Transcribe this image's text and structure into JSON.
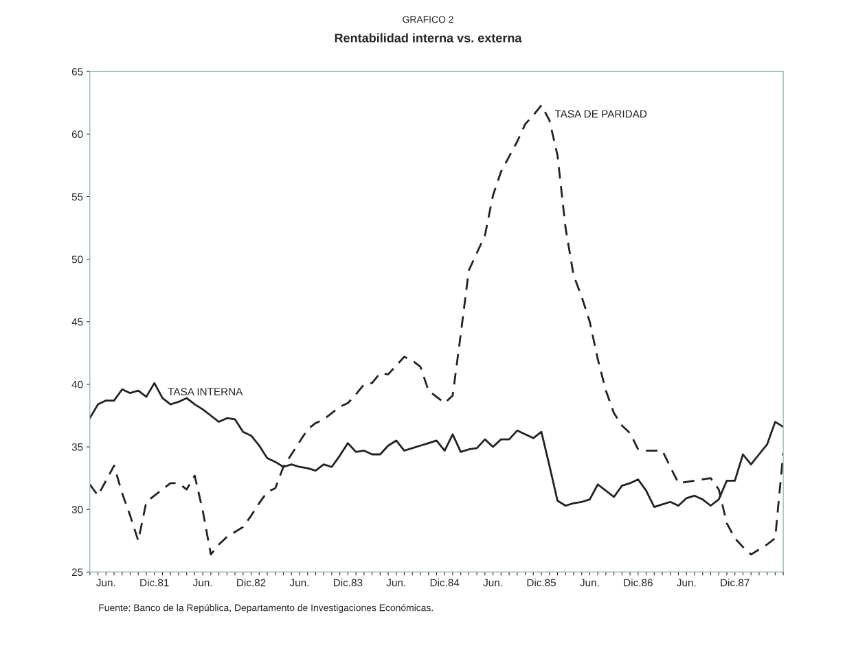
{
  "chart_data": {
    "type": "line",
    "title": "GRAFICO 2",
    "subtitle": "Rentabilidad interna vs. externa",
    "annotations": [
      "Fuente: Banco de la República, Departamento de Investigaciones Económicas."
    ],
    "ylim": [
      25,
      65
    ],
    "yticks": [
      25,
      30,
      35,
      40,
      45,
      50,
      55,
      60,
      65
    ],
    "categories": [
      null,
      null,
      "Jun.",
      null,
      null,
      null,
      null,
      null,
      "Dic.81",
      null,
      null,
      null,
      null,
      null,
      "Jun.",
      null,
      null,
      null,
      null,
      null,
      "Dic.82",
      null,
      null,
      null,
      null,
      null,
      "Jun.",
      null,
      null,
      null,
      null,
      null,
      "Dic.83",
      null,
      null,
      null,
      null,
      null,
      "Jun.",
      null,
      null,
      null,
      null,
      null,
      "Dic.84",
      null,
      null,
      null,
      null,
      null,
      "Jun.",
      null,
      null,
      null,
      null,
      null,
      "Dic.85",
      null,
      null,
      null,
      null,
      null,
      "Jun.",
      null,
      null,
      null,
      null,
      null,
      "Dic.86",
      null,
      null,
      null,
      null,
      null,
      "Jun.",
      null,
      null,
      null,
      null,
      null,
      "Dic.87",
      null,
      null,
      null,
      null,
      null,
      null
    ],
    "grid": false,
    "legend": false,
    "series": [
      {
        "name": "TASA INTERNA",
        "color": "#222222",
        "line_style": "solid",
        "values": [
          37.3,
          38.4,
          38.7,
          38.7,
          39.6,
          39.3,
          39.5,
          39.0,
          40.1,
          38.9,
          38.4,
          38.6,
          38.9,
          38.4,
          38.0,
          37.5,
          37.0,
          37.3,
          37.2,
          36.2,
          35.9,
          35.1,
          34.1,
          33.8,
          33.4,
          33.6,
          33.4,
          33.3,
          33.1,
          33.6,
          33.4,
          34.3,
          35.3,
          34.6,
          34.7,
          34.4,
          34.4,
          35.1,
          35.5,
          34.7,
          34.9,
          35.1,
          35.3,
          35.5,
          34.7,
          36.0,
          34.6,
          34.8,
          34.9,
          35.6,
          35.0,
          35.6,
          35.6,
          36.3,
          36.0,
          35.7,
          36.2,
          33.5,
          30.7,
          30.3,
          30.5,
          30.6,
          30.8,
          32.0,
          31.5,
          31.0,
          31.9,
          32.1,
          32.4,
          31.5,
          30.2,
          30.4,
          30.6,
          30.3,
          30.9,
          31.1,
          30.8,
          30.3,
          30.8,
          32.3,
          32.3,
          34.4,
          33.6,
          34.4,
          35.2,
          37.0,
          36.6
        ]
      },
      {
        "name": "TASA DE PARIDAD",
        "color": "#222222",
        "line_style": "dashed",
        "values": [
          32.0,
          31.1,
          32.3,
          33.5,
          31.3,
          29.5,
          27.5,
          30.6,
          31.1,
          31.6,
          32.1,
          32.1,
          31.6,
          32.7,
          29.9,
          26.4,
          27.2,
          27.8,
          28.2,
          28.6,
          29.5,
          30.5,
          31.4,
          31.7,
          33.4,
          34.4,
          35.4,
          36.4,
          36.9,
          37.2,
          37.7,
          38.2,
          38.5,
          39.2,
          40.0,
          40.1,
          40.9,
          40.8,
          41.5,
          42.2,
          41.9,
          41.4,
          39.5,
          39.0,
          38.5,
          39.1,
          44.0,
          49.1,
          50.5,
          51.9,
          55.1,
          57.0,
          58.2,
          59.4,
          60.8,
          61.5,
          62.3,
          61.1,
          58.3,
          52.5,
          48.7,
          47.0,
          45.0,
          42.0,
          39.5,
          37.7,
          36.7,
          36.1,
          34.8,
          34.7,
          34.7,
          34.7,
          33.4,
          32.1,
          32.2,
          32.3,
          32.4,
          32.5,
          31.6,
          28.9,
          27.7,
          27.0,
          26.4,
          26.8,
          27.2,
          27.7,
          34.5
        ]
      }
    ]
  }
}
